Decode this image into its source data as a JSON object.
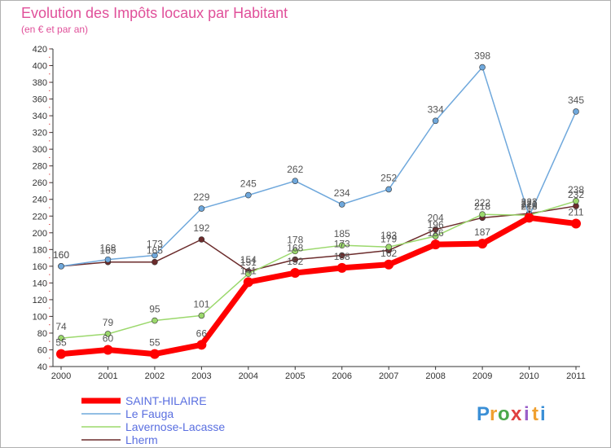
{
  "chart_data": {
    "type": "line",
    "title": "Evolution des Impôts locaux par Habitant",
    "subtitle": "(en € et par an)",
    "xlabel": "",
    "ylabel": "",
    "ylim": [
      40,
      420
    ],
    "ytick_step": 20,
    "grid": false,
    "legend_position": "bottom-left",
    "categories": [
      "2000",
      "2001",
      "2002",
      "2003",
      "2004",
      "2005",
      "2006",
      "2007",
      "2008",
      "2009",
      "2010",
      "2011"
    ],
    "series": [
      {
        "name": "SAINT-HILAIRE",
        "color": "#ff0000",
        "values": [
          55,
          60,
          55,
          66,
          141,
          152,
          158,
          162,
          186,
          187,
          218,
          211
        ]
      },
      {
        "name": "Le Fauga",
        "color": "#6fa8dc",
        "values": [
          160,
          168,
          173,
          229,
          245,
          262,
          234,
          252,
          334,
          398,
          220,
          345
        ]
      },
      {
        "name": "Lavernose-Lacasse",
        "color": "#9bd86c",
        "values": [
          74,
          79,
          95,
          101,
          151,
          178,
          185,
          183,
          196,
          222,
          221,
          238
        ]
      },
      {
        "name": "Lherm",
        "color": "#6b2b2b",
        "values": [
          160,
          165,
          165,
          192,
          154,
          168,
          173,
          179,
          204,
          218,
          223,
          232
        ]
      }
    ]
  },
  "brand": {
    "letters": [
      "P",
      "r",
      "o",
      "x",
      "i",
      "t",
      "i"
    ],
    "colors": [
      "#3a8fd6",
      "#f0a030",
      "#4aa84a",
      "#e04040",
      "#9a5fc8",
      "#f0a030",
      "#3a8fd6"
    ]
  }
}
